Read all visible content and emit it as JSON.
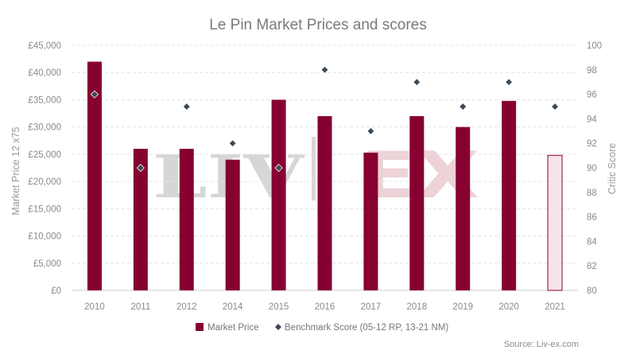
{
  "chart_data": {
    "type": "bar",
    "title": "Le Pin Market Prices and scores",
    "source": "Source: Liv-ex.com",
    "watermark": {
      "left": "LIV",
      "right": "EX"
    },
    "categories": [
      "2010",
      "2011",
      "2012",
      "2014",
      "2015",
      "2016",
      "2017",
      "2018",
      "2019",
      "2020",
      "2021"
    ],
    "series": [
      {
        "name": "Market Price",
        "type": "bar",
        "axis": "left",
        "color": "#870032",
        "values": [
          42000,
          26000,
          26000,
          24000,
          35000,
          32000,
          25300,
          32000,
          30000,
          34800,
          24800
        ],
        "highlight": {
          "index": 10,
          "fill": "#f5e4ea",
          "stroke": "#870032"
        }
      },
      {
        "name": "Benchmark Score (05-12 RP, 13-21 NM)",
        "type": "scatter",
        "axis": "right",
        "marker": "diamond",
        "color": "#3d4a57",
        "values": [
          96,
          90,
          95,
          92,
          90,
          98,
          93,
          97,
          95,
          97,
          95
        ]
      }
    ],
    "y_left": {
      "label": "Market Price 12 x75",
      "ylim": [
        0,
        45000
      ],
      "ticks": [
        0,
        5000,
        10000,
        15000,
        20000,
        25000,
        30000,
        35000,
        40000,
        45000
      ],
      "tick_labels": [
        "£0",
        "£5,000",
        "£10,000",
        "£15,000",
        "£20,000",
        "£25,000",
        "£30,000",
        "£35,000",
        "£40,000",
        "£45,000"
      ]
    },
    "y_right": {
      "label": "Critic Score",
      "ylim": [
        80,
        100
      ],
      "ticks": [
        80,
        82,
        84,
        86,
        88,
        90,
        92,
        94,
        96,
        98,
        100
      ],
      "tick_labels": [
        "80",
        "82",
        "84",
        "86",
        "88",
        "90",
        "92",
        "94",
        "96",
        "98",
        "100"
      ]
    },
    "grid": true,
    "legend": {
      "position": "bottom",
      "items": [
        {
          "label": "Market Price",
          "marker": "square",
          "color": "#870032"
        },
        {
          "label": "Benchmark Score (05-12 RP, 13-21 NM)",
          "marker": "diamond",
          "color": "#3d4a57"
        }
      ]
    },
    "colors": {
      "grid": "#e3e3e3",
      "axis": "#d0d0d0",
      "text": "#8a8a8a"
    }
  }
}
